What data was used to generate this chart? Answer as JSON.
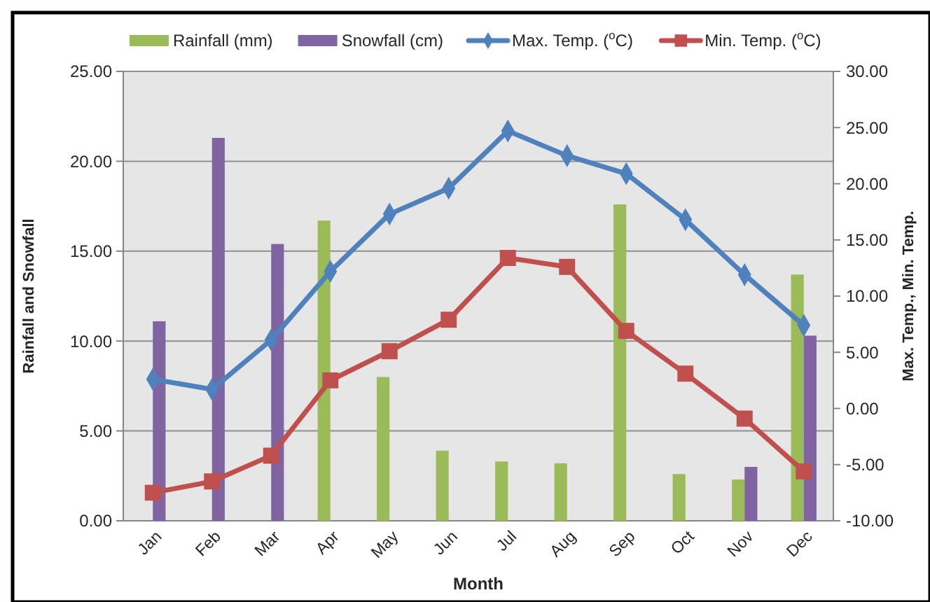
{
  "chart_data": {
    "type": "bar",
    "xlabel": "Month",
    "ylabel": "Rainfall and Snowfall",
    "y2label": "Max. Temp., Min. Temp.",
    "categories": [
      "Jan",
      "Feb",
      "Mar",
      "Apr",
      "May",
      "Jun",
      "Jul",
      "Aug",
      "Sep",
      "Oct",
      "Nov",
      "Dec"
    ],
    "series": [
      {
        "name": "Rainfall (mm)",
        "color": "#9bbb59",
        "values": [
          null,
          null,
          null,
          16.7,
          8.0,
          3.9,
          3.3,
          3.2,
          17.6,
          2.6,
          2.3,
          13.7
        ]
      },
      {
        "name": "Snowfall (cm)",
        "color": "#8064a2",
        "values": [
          11.1,
          21.3,
          15.4,
          null,
          null,
          null,
          null,
          null,
          null,
          null,
          3.0,
          10.3
        ]
      },
      {
        "name": "Max. Temp. ($^{o}$C)",
        "type": "line",
        "axis": "y2",
        "marker": "diamond",
        "color": "#4f81bd",
        "values": [
          2.6,
          1.7,
          6.1,
          12.2,
          17.3,
          19.6,
          24.7,
          22.5,
          20.9,
          16.8,
          11.9,
          7.4
        ]
      },
      {
        "name": "Min. Temp. ($^{o}$C)",
        "type": "line",
        "axis": "y2",
        "marker": "square",
        "color": "#c0504d",
        "values": [
          -7.5,
          -6.5,
          -4.2,
          2.5,
          5.1,
          7.9,
          13.4,
          12.6,
          6.9,
          3.1,
          -0.9,
          -5.6
        ]
      }
    ],
    "ylim": [
      0,
      25
    ],
    "yticks": [
      {
        "value": 0,
        "label": "0.00"
      },
      {
        "value": 5,
        "label": "5.00"
      },
      {
        "value": 10,
        "label": "10.00"
      },
      {
        "value": 15,
        "label": "15.00"
      },
      {
        "value": 20,
        "label": "20.00"
      },
      {
        "value": 25,
        "label": "25.00"
      }
    ],
    "y2lim": [
      -10,
      30
    ],
    "y2ticks": [
      {
        "value": -10,
        "label": "-10.00"
      },
      {
        "value": -5,
        "label": "-5.00"
      },
      {
        "value": 0,
        "label": "0.00"
      },
      {
        "value": 5,
        "label": "5.00"
      },
      {
        "value": 10,
        "label": "10.00"
      },
      {
        "value": 15,
        "label": "15.00"
      },
      {
        "value": 20,
        "label": "20.00"
      },
      {
        "value": 25,
        "label": "25.00"
      },
      {
        "value": 30,
        "label": "30.00"
      }
    ],
    "grid": "y",
    "legend": "top"
  }
}
